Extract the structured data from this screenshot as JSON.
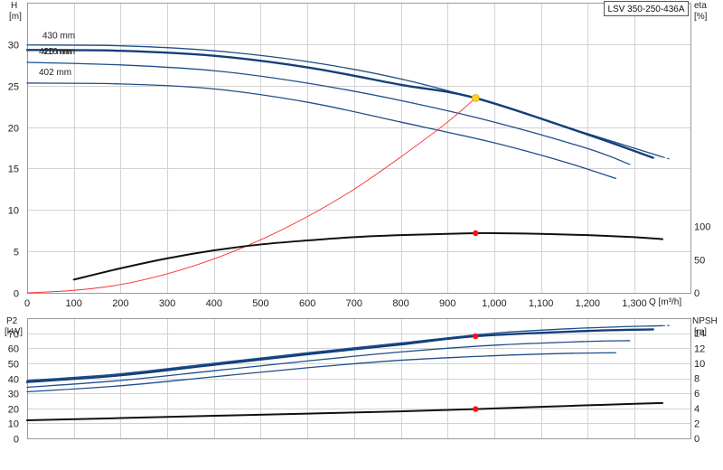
{
  "pump_label": "LSV 350-250-436A",
  "colors": {
    "impeller": "#1e4f8a",
    "selected": "#133f7a",
    "system": "#ff2a2a",
    "efficiency": "#111111",
    "duty_point_top": "#ffd21f",
    "duty_point": "#ff1010"
  },
  "chart_data": [
    {
      "type": "line",
      "panel": "head_efficiency",
      "left_axis": {
        "label": "H",
        "unit": "[m]",
        "ylim": [
          0,
          35
        ],
        "ticks": [
          0,
          5,
          10,
          15,
          20,
          25,
          30
        ]
      },
      "right_axis": {
        "label": "eta",
        "unit": "[%]",
        "ylim": [
          0,
          437.5
        ],
        "ticks": [
          0,
          50,
          100
        ]
      },
      "x_axis": {
        "label": "Q [m³/h]",
        "xlim": [
          0,
          1420
        ],
        "ticks": [
          0,
          100,
          200,
          300,
          400,
          500,
          600,
          700,
          800,
          900,
          1000,
          1100,
          1200,
          1300
        ],
        "tick_labels": [
          "0",
          "100",
          "200",
          "300",
          "400",
          "500",
          "600",
          "700",
          "800",
          "900",
          "1,000",
          "1,100",
          "1,200",
          "1,300"
        ]
      },
      "grid": true,
      "curve_labels": [
        "430 mm",
        "426 mm",
        "416 mm",
        "402 mm"
      ],
      "series": [
        {
          "name": "430 mm",
          "role": "impeller",
          "x": [
            0,
            200,
            400,
            600,
            800,
            1000,
            1200,
            1360
          ],
          "y": [
            29.9,
            29.8,
            29.2,
            27.9,
            25.8,
            22.8,
            19.2,
            16.4
          ]
        },
        {
          "name": "426 mm",
          "role": "selected",
          "x": [
            0,
            200,
            400,
            600,
            800,
            960,
            1200,
            1340
          ],
          "y": [
            29.3,
            29.2,
            28.6,
            27.2,
            25.1,
            23.5,
            19.1,
            16.3
          ]
        },
        {
          "name": "416 mm",
          "role": "impeller",
          "x": [
            0,
            200,
            400,
            600,
            800,
            1000,
            1200,
            1290
          ],
          "y": [
            27.8,
            27.5,
            26.8,
            25.3,
            23.2,
            20.6,
            17.4,
            15.5
          ]
        },
        {
          "name": "402 mm",
          "role": "impeller",
          "x": [
            0,
            200,
            400,
            600,
            800,
            1000,
            1150,
            1260
          ],
          "y": [
            25.3,
            25.2,
            24.6,
            23.0,
            20.6,
            18.1,
            15.8,
            13.8
          ]
        },
        {
          "name": "",
          "role": "system",
          "x": [
            0,
            100,
            200,
            300,
            400,
            500,
            600,
            700,
            800,
            900,
            960
          ],
          "y": [
            0,
            0.3,
            1.0,
            2.3,
            4.1,
            6.4,
            9.2,
            12.5,
            16.4,
            20.6,
            23.5
          ]
        },
        {
          "name": "",
          "role": "efficiency",
          "axis": "right",
          "x": [
            100,
            200,
            300,
            400,
            500,
            600,
            700,
            800,
            900,
            960,
            1000,
            1100,
            1200,
            1300,
            1360
          ],
          "y": [
            20,
            37,
            52,
            64,
            73,
            79,
            84,
            87,
            89,
            90,
            90,
            89,
            87,
            84,
            81
          ]
        }
      ],
      "duty_point": {
        "x": 960,
        "y": 23.5,
        "efficiency": 90
      }
    },
    {
      "type": "line",
      "panel": "power_npsh",
      "left_axis": {
        "label": "P2",
        "unit": "[kW]",
        "ylim": [
          0,
          80
        ],
        "ticks": [
          0,
          10,
          20,
          30,
          40,
          50,
          60,
          70
        ]
      },
      "right_axis": {
        "label": "NPSH",
        "unit": "[m]",
        "ylim": [
          0,
          16
        ],
        "ticks": [
          0,
          2,
          4,
          6,
          8,
          10,
          12,
          14
        ]
      },
      "x_axis": {
        "xlim": [
          0,
          1420
        ],
        "ticks": [
          0,
          100,
          200,
          300,
          400,
          500,
          600,
          700,
          800,
          900,
          1000,
          1100,
          1200,
          1300
        ]
      },
      "grid": true,
      "series": [
        {
          "name": "",
          "role": "impeller",
          "x": [
            0,
            200,
            400,
            600,
            800,
            1000,
            1200,
            1360
          ],
          "y": [
            38.5,
            43,
            50,
            57,
            63.5,
            70,
            73.5,
            75
          ]
        },
        {
          "name": "",
          "role": "selected",
          "x": [
            0,
            200,
            400,
            600,
            800,
            960,
            1200,
            1340
          ],
          "y": [
            37.5,
            42,
            49,
            56,
            62.5,
            68,
            71.5,
            72.5
          ]
        },
        {
          "name": "",
          "role": "impeller",
          "x": [
            0,
            200,
            400,
            600,
            800,
            1000,
            1200,
            1290
          ],
          "y": [
            34,
            38.5,
            45,
            51.5,
            57.5,
            62,
            64.5,
            65
          ]
        },
        {
          "name": "",
          "role": "impeller",
          "x": [
            0,
            200,
            400,
            600,
            800,
            1000,
            1150,
            1260
          ],
          "y": [
            31,
            35,
            41,
            47,
            52,
            55,
            56.5,
            57
          ]
        },
        {
          "name": "",
          "role": "npsh",
          "axis": "right",
          "x": [
            0,
            200,
            400,
            600,
            800,
            960,
            1100,
            1200,
            1300,
            1360
          ],
          "y": [
            2.4,
            2.7,
            3.0,
            3.3,
            3.6,
            3.9,
            4.2,
            4.4,
            4.6,
            4.7
          ]
        }
      ],
      "duty_point": {
        "x": 960,
        "p2": 68,
        "npsh": 3.9
      }
    }
  ]
}
